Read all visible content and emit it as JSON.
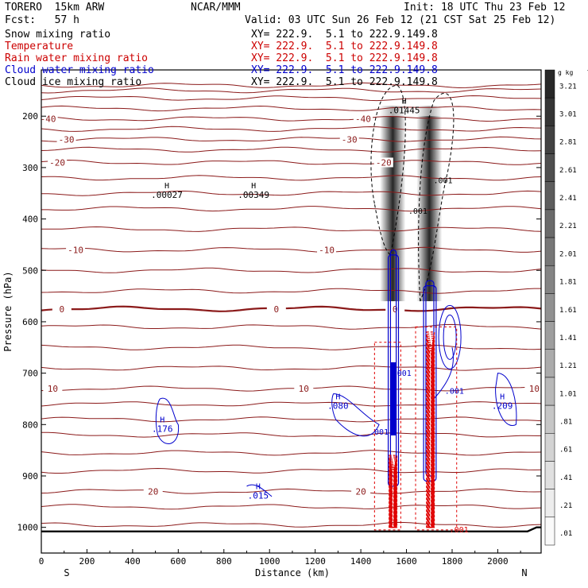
{
  "header": {
    "model": "TORERO  15km ARW",
    "org": "NCAR/MMM",
    "init": "Init: 18 UTC Thu 23 Feb 12",
    "fcst": "Fcst:   57 h",
    "valid": "Valid: 03 UTC Sun 26 Feb 12 (21 CST Sat 25 Feb 12)"
  },
  "fields": [
    {
      "name": "Snow mixing ratio",
      "xy": "XY= 222.9.  5.1 to 222.9.149.8",
      "color": "#000000"
    },
    {
      "name": "Temperature",
      "xy": "XY= 222.9.  5.1 to 222.9.149.8",
      "color": "#cc0000"
    },
    {
      "name": "Rain water mixing ratio",
      "xy": "XY= 222.9.  5.1 to 222.9.149.8",
      "color": "#cc0000"
    },
    {
      "name": "Cloud water mixing ratio",
      "xy": "XY= 222.9.  5.1 to 222.9.149.8",
      "color": "#0000cc"
    },
    {
      "name": "Cloud ice mixing ratio",
      "xy": "XY= 222.9.  5.1 to 222.9.149.8",
      "color": "#000000"
    }
  ],
  "colors": {
    "temperature": "#8b1a1a",
    "rain": "#e00000",
    "cloud_water": "#0000cc",
    "frame": "#000000"
  },
  "chart_data": {
    "type": "contour",
    "xlabel": "Distance (km)",
    "ylabel": "Pressure (hPa)",
    "xlim": [
      0,
      2190
    ],
    "ylim": [
      1050,
      110
    ],
    "x_ticks": [
      0,
      200,
      400,
      600,
      800,
      1000,
      1200,
      1400,
      1600,
      1800,
      2000
    ],
    "y_ticks": [
      200,
      300,
      400,
      500,
      600,
      700,
      800,
      900,
      1000
    ],
    "end_labels": {
      "left": "S",
      "right": "N"
    },
    "colorbar": {
      "unit": "g kg",
      "unit_exp": "-1",
      "labels": [
        "3.21",
        "3.01",
        "2.81",
        "2.61",
        "2.41",
        "2.21",
        "2.01",
        "1.81",
        "1.61",
        "1.41",
        "1.21",
        "1.01",
        ".81",
        ".61",
        ".41",
        ".21",
        ".01"
      ]
    },
    "temperature_labels": [
      {
        "value": "-40",
        "x": [
          30,
          1410
        ]
      },
      {
        "value": "-30",
        "x": [
          110,
          1350
        ]
      },
      {
        "value": "-20",
        "x": [
          70,
          1500
        ]
      },
      {
        "value": "-10",
        "x": [
          150,
          1250
        ]
      },
      {
        "value": "0",
        "x": [
          90,
          1550,
          1030
        ]
      },
      {
        "value": "10",
        "x": [
          50,
          1150,
          2160
        ]
      },
      {
        "value": "20",
        "x": [
          490,
          1400
        ]
      }
    ],
    "maxima": [
      {
        "mark": "H",
        "value": ".00027",
        "x": 550,
        "p": 350,
        "color": "#000000"
      },
      {
        "mark": "H",
        "value": ".00349",
        "x": 930,
        "p": 350,
        "color": "#000000"
      },
      {
        "mark": "H",
        "value": ".01445",
        "x": 1590,
        "p": 185,
        "color": "#000000"
      },
      {
        "mark": "H",
        "value": ".176",
        "x": 530,
        "p": 805,
        "color": "#0000cc"
      },
      {
        "mark": "H",
        "value": ".080",
        "x": 1300,
        "p": 760,
        "color": "#0000cc"
      },
      {
        "mark": "H",
        "value": ".015",
        "x": 950,
        "p": 935,
        "color": "#0000cc"
      },
      {
        "mark": "H",
        "value": ".209",
        "x": 2020,
        "p": 760,
        "color": "#0000cc"
      }
    ],
    "contour_labels": [
      {
        "value": ".001",
        "x": 1650,
        "p": 390,
        "color": "#000000"
      },
      {
        "value": ".001",
        "x": 1760,
        "p": 330,
        "color": "#000000"
      },
      {
        "value": ".001",
        "x": 1810,
        "p": 740,
        "color": "#0000cc"
      },
      {
        "value": ".001",
        "x": 1480,
        "p": 820,
        "color": "#0000cc"
      },
      {
        "value": ".001",
        "x": 1580,
        "p": 705,
        "color": "#0000cc"
      },
      {
        "value": ".001",
        "x": 1830,
        "p": 1010,
        "color": "#e00000"
      }
    ]
  }
}
